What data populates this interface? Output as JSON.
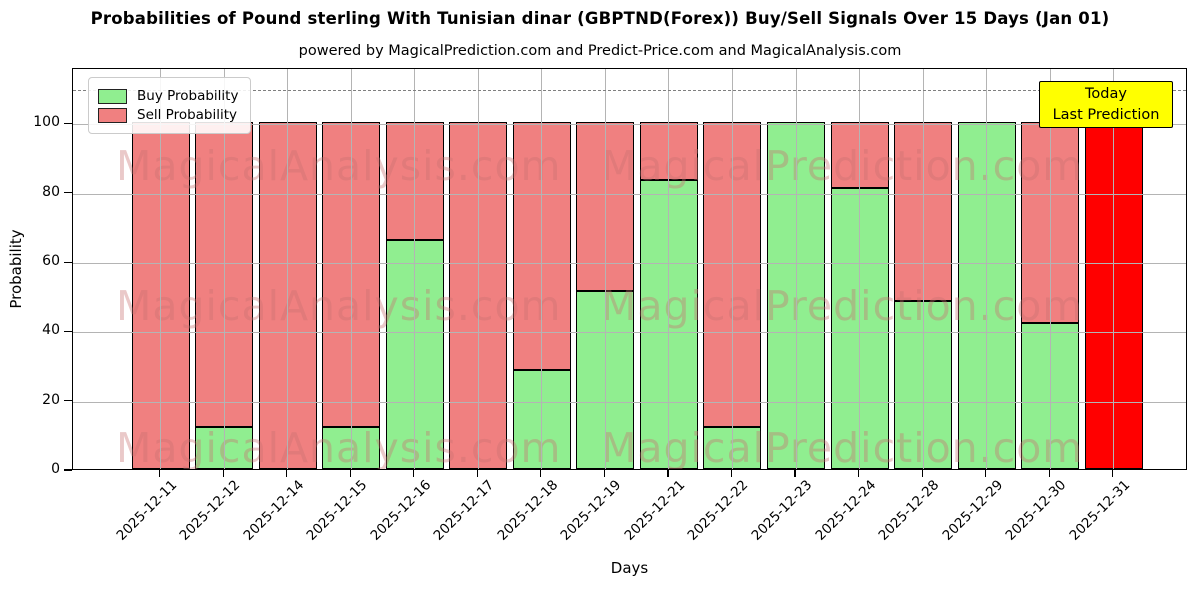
{
  "header": {
    "title": "Probabilities of Pound sterling With Tunisian dinar (GBPTND(Forex)) Buy/Sell Signals Over 15 Days (Jan 01)",
    "subtitle": "powered by MagicalPrediction.com and Predict-Price.com and MagicalAnalysis.com"
  },
  "axes": {
    "xlabel": "Days",
    "ylabel": "Probability",
    "yticks": [
      0,
      20,
      40,
      60,
      80,
      100
    ]
  },
  "legend": {
    "items": [
      {
        "label": "Buy Probability",
        "color": "#90EE90"
      },
      {
        "label": "Sell Probability",
        "color": "#F08080"
      }
    ]
  },
  "annotation_box": {
    "lines": [
      "Today",
      "Last Prediction"
    ],
    "bg_color": "#FFFF00"
  },
  "watermarks": {
    "left_text": "MagicalAnalysis.com",
    "right_text": "MagicalPrediction.com",
    "rows": 3
  },
  "colors": {
    "buy": "#90EE90",
    "sell": "#F08080",
    "today_bar": "#FF0000",
    "grid": "#b4b4b4",
    "dashed_line": "#7f7f7f",
    "annotation_bg": "#FFFF00"
  },
  "chart_data": {
    "type": "bar",
    "stacked": true,
    "title": "Probabilities of Pound sterling With Tunisian dinar (GBPTND(Forex)) Buy/Sell Signals Over 15 Days (Jan 01)",
    "xlabel": "Days",
    "ylabel": "Probability",
    "ylim": [
      0,
      116
    ],
    "grid": true,
    "legend_position": "upper left",
    "dashed_line_y": 110,
    "categories": [
      "2025-12-11",
      "2025-12-12",
      "2025-12-14",
      "2025-12-15",
      "2025-12-16",
      "2025-12-17",
      "2025-12-18",
      "2025-12-19",
      "2025-12-21",
      "2025-12-22",
      "2025-12-23",
      "2025-12-24",
      "2025-12-28",
      "2025-12-29",
      "2025-12-30",
      "2025-12-31"
    ],
    "series": [
      {
        "name": "Buy Probability",
        "color": "#90EE90",
        "values": [
          0,
          12,
          0,
          12,
          66,
          0,
          28.5,
          51.5,
          83.5,
          12,
          100,
          81,
          48.5,
          100,
          42,
          0
        ]
      },
      {
        "name": "Sell Probability",
        "color": "#F08080",
        "values": [
          100,
          88,
          100,
          88,
          34,
          100,
          71.5,
          48.5,
          16.5,
          88,
          0,
          19,
          51.5,
          0,
          58,
          100
        ]
      }
    ],
    "today": {
      "category": "2025-12-31",
      "index": 15,
      "value": 100,
      "color": "#FF0000"
    }
  }
}
